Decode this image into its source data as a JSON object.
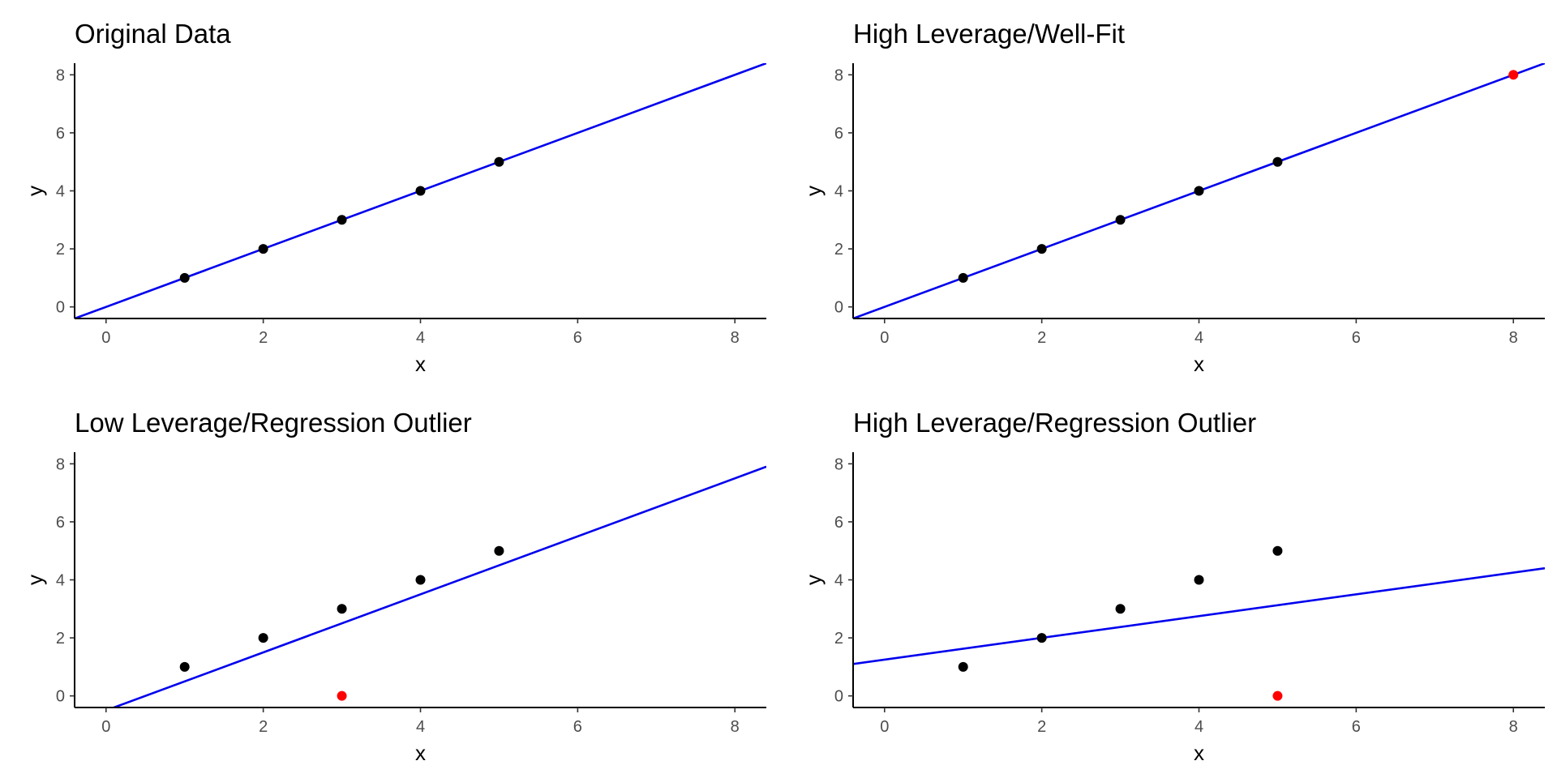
{
  "colors": {
    "fit_line": "#0000ee",
    "point": "#000000",
    "highlight": "#ff0000",
    "axis": "#000000"
  },
  "chart_data": [
    {
      "type": "scatter",
      "title": "Original Data",
      "xlabel": "x",
      "ylabel": "y",
      "xlim": [
        -0.4,
        8.4
      ],
      "ylim": [
        -0.4,
        8.4
      ],
      "xticks": [
        0,
        2,
        4,
        6,
        8
      ],
      "yticks": [
        0,
        2,
        4,
        6,
        8
      ],
      "grid": false,
      "points": [
        {
          "x": 1,
          "y": 1
        },
        {
          "x": 2,
          "y": 2
        },
        {
          "x": 3,
          "y": 3
        },
        {
          "x": 4,
          "y": 4
        },
        {
          "x": 5,
          "y": 5
        }
      ],
      "highlight_points": [],
      "fit_line": {
        "intercept": 0,
        "slope": 1
      }
    },
    {
      "type": "scatter",
      "title": "High Leverage/Well-Fit",
      "xlabel": "x",
      "ylabel": "y",
      "xlim": [
        -0.4,
        8.4
      ],
      "ylim": [
        -0.4,
        8.4
      ],
      "xticks": [
        0,
        2,
        4,
        6,
        8
      ],
      "yticks": [
        0,
        2,
        4,
        6,
        8
      ],
      "grid": false,
      "points": [
        {
          "x": 1,
          "y": 1
        },
        {
          "x": 2,
          "y": 2
        },
        {
          "x": 3,
          "y": 3
        },
        {
          "x": 4,
          "y": 4
        },
        {
          "x": 5,
          "y": 5
        }
      ],
      "highlight_points": [
        {
          "x": 8,
          "y": 8
        }
      ],
      "fit_line": {
        "intercept": 0,
        "slope": 1
      }
    },
    {
      "type": "scatter",
      "title": "Low Leverage/Regression Outlier",
      "xlabel": "x",
      "ylabel": "y",
      "xlim": [
        -0.4,
        8.4
      ],
      "ylim": [
        -0.4,
        8.4
      ],
      "xticks": [
        0,
        2,
        4,
        6,
        8
      ],
      "yticks": [
        0,
        2,
        4,
        6,
        8
      ],
      "grid": false,
      "points": [
        {
          "x": 1,
          "y": 1
        },
        {
          "x": 2,
          "y": 2
        },
        {
          "x": 3,
          "y": 3
        },
        {
          "x": 4,
          "y": 4
        },
        {
          "x": 5,
          "y": 5
        }
      ],
      "highlight_points": [
        {
          "x": 3,
          "y": 0
        }
      ],
      "fit_line": {
        "intercept": -0.5,
        "slope": 1
      }
    },
    {
      "type": "scatter",
      "title": "High Leverage/Regression Outlier",
      "xlabel": "x",
      "ylabel": "y",
      "xlim": [
        -0.4,
        8.4
      ],
      "ylim": [
        -0.4,
        8.4
      ],
      "xticks": [
        0,
        2,
        4,
        6,
        8
      ],
      "yticks": [
        0,
        2,
        4,
        6,
        8
      ],
      "grid": false,
      "points": [
        {
          "x": 1,
          "y": 1
        },
        {
          "x": 2,
          "y": 2
        },
        {
          "x": 3,
          "y": 3
        },
        {
          "x": 4,
          "y": 4
        },
        {
          "x": 5,
          "y": 5
        }
      ],
      "highlight_points": [
        {
          "x": 5,
          "y": 0
        }
      ],
      "fit_line": {
        "intercept": 1.25,
        "slope": 0.375
      }
    }
  ]
}
